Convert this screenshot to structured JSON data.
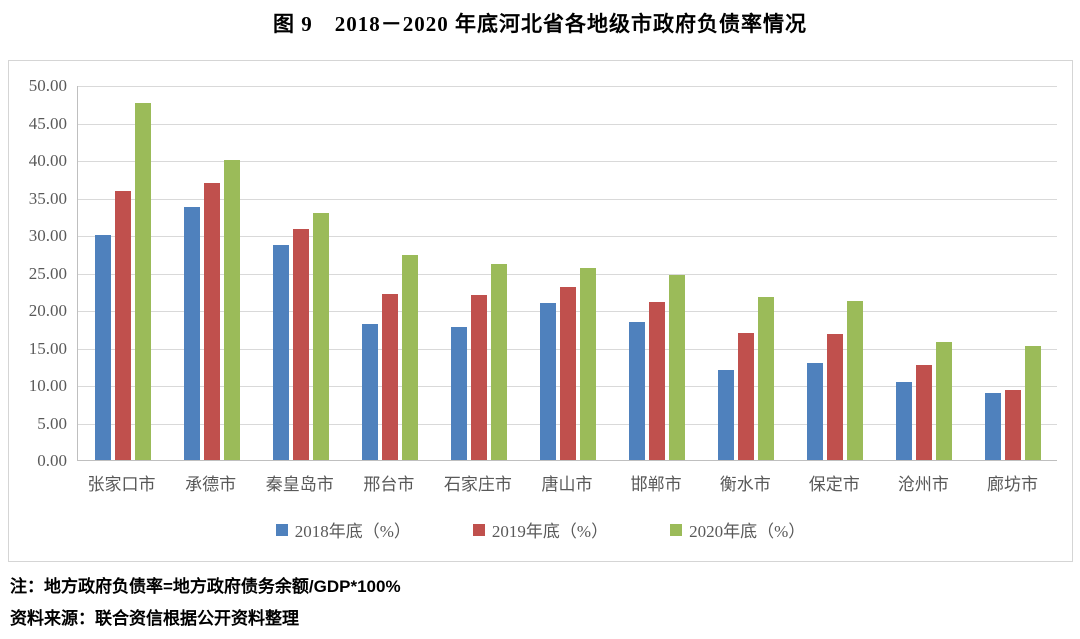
{
  "title": "图 9　2018－2020 年底河北省各地级市政府负债率情况",
  "chart_data": {
    "type": "bar",
    "title": "图 9　2018－2020 年底河北省各地级市政府负债率情况",
    "categories": [
      "张家口市",
      "承德市",
      "秦皇岛市",
      "邢台市",
      "石家庄市",
      "唐山市",
      "邯郸市",
      "衡水市",
      "保定市",
      "沧州市",
      "廊坊市"
    ],
    "series": [
      {
        "name": "2018年底（%）",
        "color": "#4F81BD",
        "values": [
          30.0,
          33.7,
          28.7,
          18.1,
          17.7,
          21.0,
          18.4,
          12.0,
          13.0,
          10.4,
          9.0
        ]
      },
      {
        "name": "2019年底（%）",
        "color": "#C0504D",
        "values": [
          35.9,
          36.9,
          30.8,
          22.2,
          22.0,
          23.1,
          21.1,
          16.9,
          16.8,
          12.7,
          9.4
        ]
      },
      {
        "name": "2020年底（%）",
        "color": "#9BBB59",
        "values": [
          47.6,
          40.0,
          33.0,
          27.4,
          26.2,
          25.6,
          24.7,
          21.8,
          21.2,
          15.7,
          15.2
        ]
      }
    ],
    "xlabel": "",
    "ylabel": "",
    "ylim": [
      0,
      50
    ],
    "ytick_step": 5,
    "ytick_labels": [
      "0.00",
      "5.00",
      "10.00",
      "15.00",
      "20.00",
      "25.00",
      "30.00",
      "35.00",
      "40.00",
      "45.00",
      "50.00"
    ],
    "grid": true,
    "legend_position": "bottom",
    "gridline_color": "#D9D9D9",
    "axis_line_color": "#BFBFBF",
    "axis_label_color": "#595959"
  },
  "notes": {
    "formula": "注：地方政府负债率=地方政府债务余额/GDP*100%",
    "source": "资料来源：联合资信根据公开资料整理"
  }
}
